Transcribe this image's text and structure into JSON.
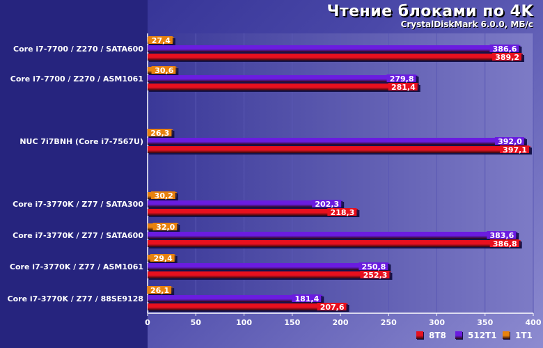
{
  "chart_data": {
    "type": "bar",
    "orientation": "horizontal",
    "title": "Чтение блоками по 4K",
    "subtitle": "CrystalDiskMark 6.0.0, МБ/с",
    "xlim": [
      0,
      400
    ],
    "xticks": [
      "0",
      "50",
      "100",
      "150",
      "200",
      "250",
      "300",
      "350",
      "400"
    ],
    "grid": true,
    "legend_position": "bottom-right",
    "categories": [
      "Core i7-7700 / Z270 / SATA600",
      "Core i7-7700 / Z270 / ASM1061",
      "NUC 7i7BNH (Core i7-7567U)",
      "Core i7-3770K / Z77 / SATA300",
      "Core i7-3770K / Z77 / SATA600",
      "Core i7-3770K / Z77 / ASM1061",
      "Core i7-3770K / Z77 / 88SE9128"
    ],
    "series": [
      {
        "name": "1T1",
        "color": "#e8820e",
        "values": [
          27.4,
          30.6,
          26.3,
          30.2,
          32.0,
          29.4,
          26.1
        ],
        "labels": [
          "27,4",
          "30,6",
          "26,3",
          "30,2",
          "32,0",
          "29,4",
          "26,1"
        ]
      },
      {
        "name": "512T1",
        "color": "#6a1ce0",
        "values": [
          386.6,
          279.8,
          392.0,
          202.3,
          383.6,
          250.8,
          181.4
        ],
        "labels": [
          "386,6",
          "279,8",
          "392,0",
          "202,3",
          "383,6",
          "250,8",
          "181,4"
        ]
      },
      {
        "name": "8T8",
        "color": "#e8101e",
        "values": [
          389.2,
          281.4,
          397.1,
          218.3,
          386.8,
          252.3,
          207.6
        ],
        "labels": [
          "389,2",
          "281,4",
          "397,1",
          "218,3",
          "386,8",
          "252,3",
          "207,6"
        ]
      }
    ],
    "legend_order": [
      "8T8",
      "512T1",
      "1T1"
    ]
  }
}
